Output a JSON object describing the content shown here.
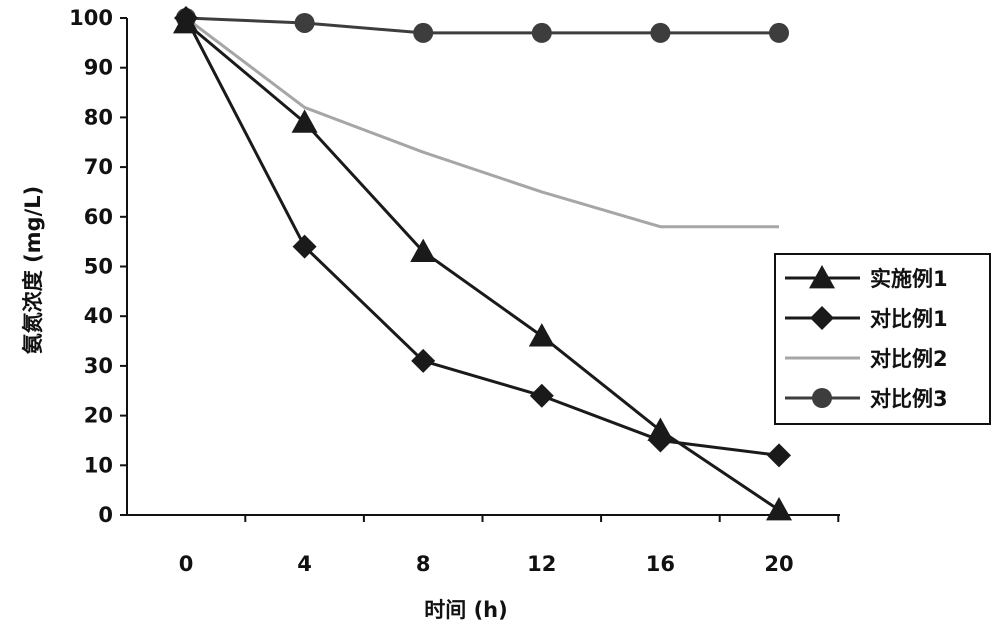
{
  "chart_data": {
    "type": "line",
    "title": "",
    "xlabel": "时间 (h)",
    "ylabel": "氨氮浓度 (mg/L)",
    "xlim": [
      0,
      20
    ],
    "ylim": [
      0,
      100
    ],
    "x": [
      0,
      4,
      8,
      12,
      16,
      20
    ],
    "x_ticks": [
      "0",
      "4",
      "8",
      "12",
      "16",
      "20"
    ],
    "y_ticks": [
      "0",
      "10",
      "20",
      "30",
      "40",
      "50",
      "60",
      "70",
      "80",
      "90",
      "100"
    ],
    "grid": false,
    "legend_position": "right",
    "series": [
      {
        "name": "实施例1",
        "values": [
          99,
          79,
          53,
          36,
          17,
          1
        ],
        "marker": "triangle",
        "color": "#1a1a1a"
      },
      {
        "name": "对比例1",
        "values": [
          100,
          54,
          31,
          24,
          15,
          12
        ],
        "marker": "diamond",
        "color": "#1a1a1a"
      },
      {
        "name": "对比例2",
        "values": [
          100,
          82,
          73,
          65,
          58,
          58
        ],
        "marker": "none",
        "color": "#a6a6a6"
      },
      {
        "name": "对比例3",
        "values": [
          100,
          99,
          97,
          97,
          97,
          97
        ],
        "marker": "circle",
        "color": "#3d3d3d"
      }
    ]
  }
}
